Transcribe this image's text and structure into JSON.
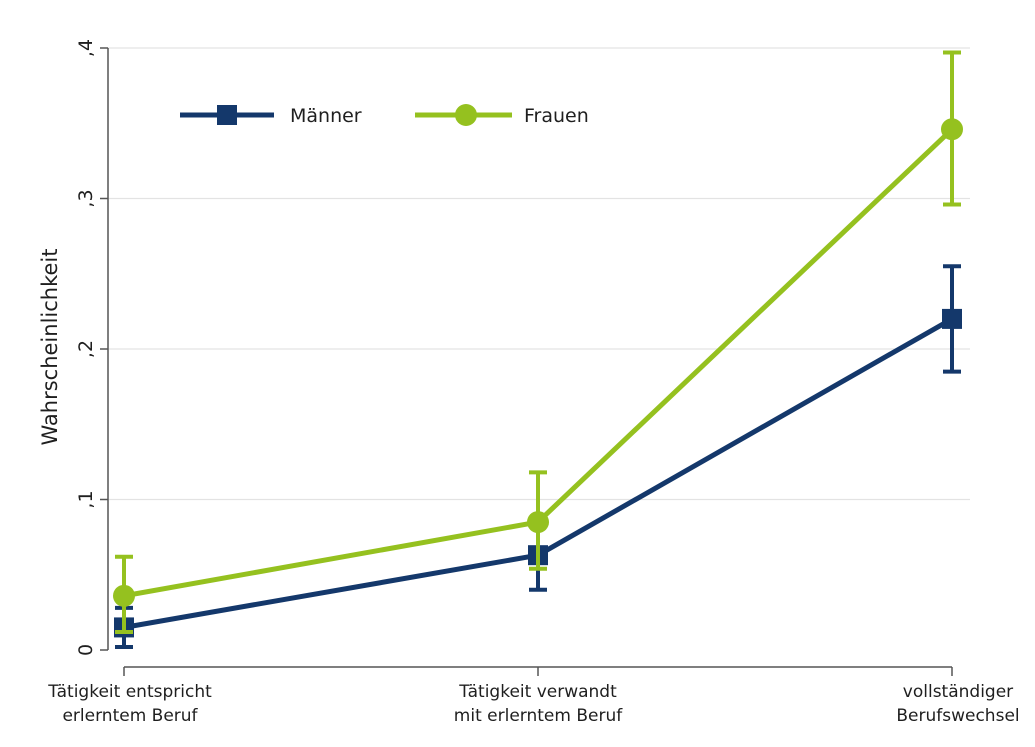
{
  "chart_data": {
    "type": "line",
    "title": "",
    "xlabel": "",
    "ylabel": "Wahrscheinlichkeit",
    "ylim": [
      0,
      0.4
    ],
    "yticks": [
      {
        "value": 0,
        "label": "0"
      },
      {
        "value": 0.1,
        "label": ",1"
      },
      {
        "value": 0.2,
        "label": ",2"
      },
      {
        "value": 0.3,
        "label": ",3"
      },
      {
        "value": 0.4,
        "label": ",4"
      }
    ],
    "categories": [
      {
        "line1": "Tätigkeit entspricht",
        "line2": "erlerntem Beruf"
      },
      {
        "line1": "Tätigkeit verwandt",
        "line2": "mit erlerntem Beruf"
      },
      {
        "line1": "vollständiger",
        "line2": "Berufswechsel"
      }
    ],
    "grid": true,
    "legend_position": "top-left",
    "series": [
      {
        "name": "Männer",
        "color": "#14386b",
        "marker": "square",
        "values": [
          0.015,
          0.063,
          0.22
        ],
        "ci_low": [
          0.002,
          0.04,
          0.185
        ],
        "ci_high": [
          0.028,
          0.086,
          0.255
        ]
      },
      {
        "name": "Frauen",
        "color": "#95c11f",
        "marker": "circle",
        "values": [
          0.036,
          0.085,
          0.346
        ],
        "ci_low": [
          0.012,
          0.054,
          0.296
        ],
        "ci_high": [
          0.062,
          0.118,
          0.397
        ]
      }
    ]
  }
}
